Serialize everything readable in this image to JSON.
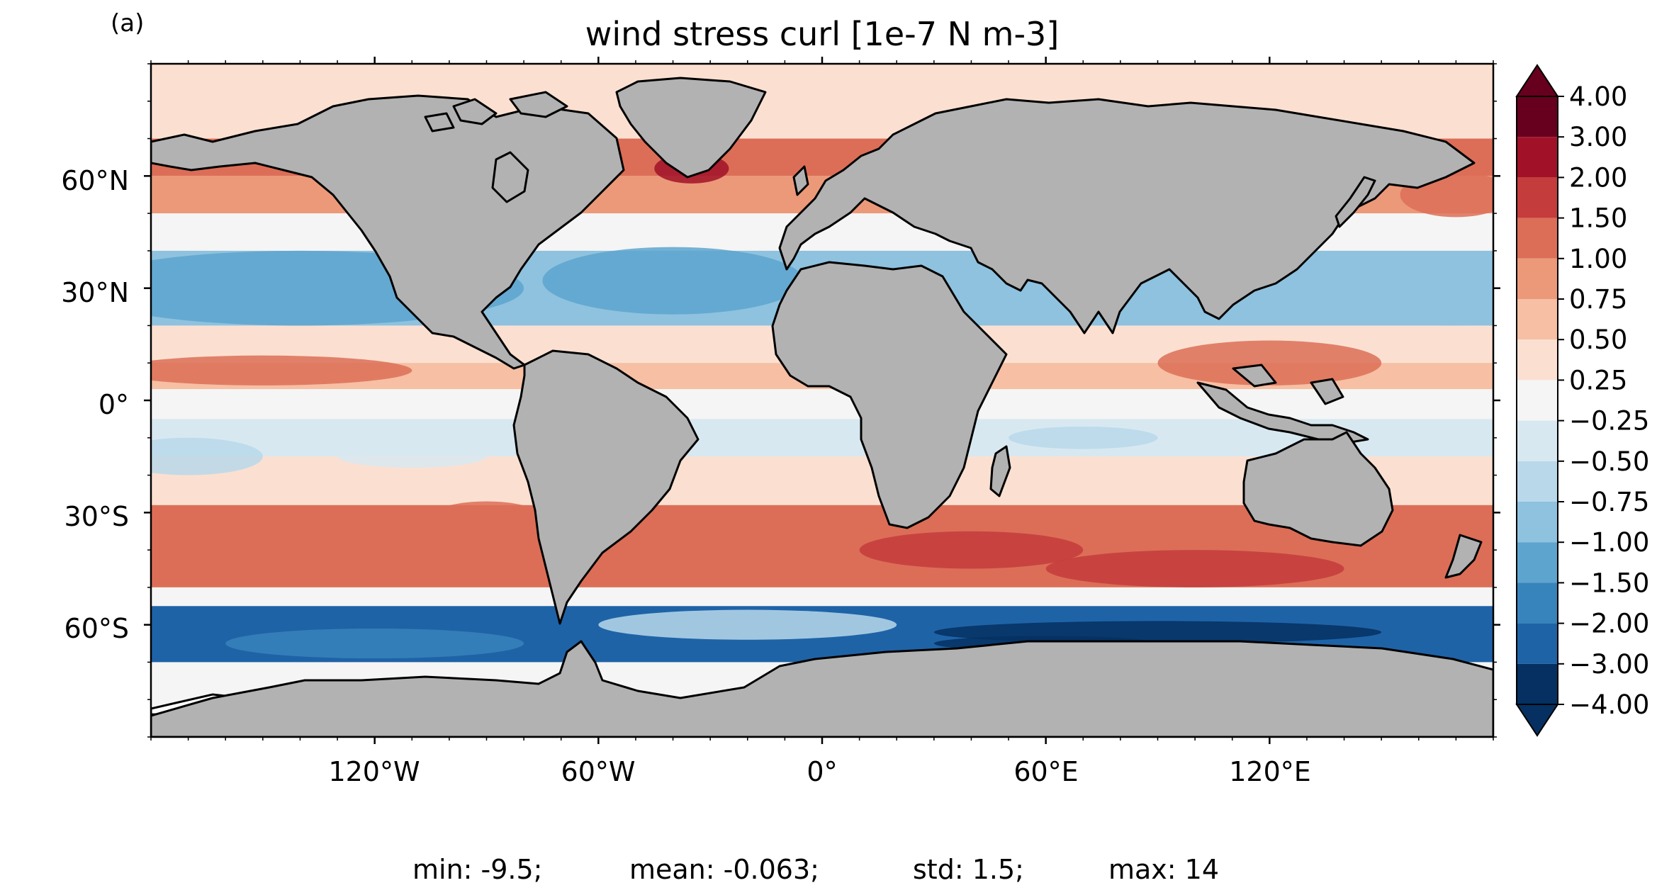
{
  "panel_label": "(a)",
  "title": "wind stress curl [1e-7 N m-3]",
  "lon_ticks": [
    "120°W",
    "60°W",
    "0°",
    "60°E",
    "120°E"
  ],
  "lat_ticks": [
    "60°N",
    "30°N",
    "0°",
    "30°S",
    "60°S"
  ],
  "colorbar": {
    "levels": [
      "4.00",
      "3.00",
      "2.00",
      "1.50",
      "1.00",
      "0.75",
      "0.50",
      "0.25",
      "−0.25",
      "−0.50",
      "−0.75",
      "−1.00",
      "−1.50",
      "−2.00",
      "−3.00",
      "−4.00"
    ],
    "colors": [
      "#67001f",
      "#a11228",
      "#c43c3c",
      "#dc6e57",
      "#ec9979",
      "#f7bfa3",
      "#fbe0d1",
      "#f5f5f5",
      "#d8e8f1",
      "#b9d8ea",
      "#8ec2de",
      "#5da4cf",
      "#3783bb",
      "#1f63a7",
      "#053061"
    ],
    "extend": "both"
  },
  "stats": {
    "min": "min: -9.5;",
    "mean": "mean: -0.063;",
    "std": "std: 1.5;",
    "max": "max: 14"
  },
  "colors": {
    "land": "#b2b2b2",
    "ice": "#ffffff",
    "coast": "#000000"
  },
  "chart_data": {
    "type": "heatmap",
    "title": "wind stress curl [1e-7 N m-3]",
    "projection": "PlateCarree",
    "xlim": [
      -180,
      180
    ],
    "ylim": [
      -90,
      90
    ],
    "xticks": [
      -120,
      -60,
      0,
      60,
      120
    ],
    "yticks": [
      60,
      30,
      0,
      -30,
      -60
    ],
    "colorbar_levels": [
      -4.0,
      -3.0,
      -2.0,
      -1.5,
      -1.0,
      -0.75,
      -0.5,
      -0.25,
      0.25,
      0.5,
      0.75,
      1.0,
      1.5,
      2.0,
      3.0,
      4.0
    ],
    "summary": {
      "min": -9.5,
      "mean": -0.063,
      "std": 1.5,
      "max": 14
    },
    "zonal_bands": [
      {
        "lat": [
          70,
          90
        ],
        "value": 0.3
      },
      {
        "lat": [
          60,
          70
        ],
        "value": 1.2
      },
      {
        "lat": [
          50,
          60
        ],
        "value": 0.8
      },
      {
        "lat": [
          40,
          50
        ],
        "value": -0.2
      },
      {
        "lat": [
          20,
          40
        ],
        "value": -0.8
      },
      {
        "lat": [
          10,
          20
        ],
        "value": 0.4
      },
      {
        "lat": [
          3,
          10
        ],
        "value": 0.7
      },
      {
        "lat": [
          -5,
          3
        ],
        "value": 0.0
      },
      {
        "lat": [
          -15,
          -5
        ],
        "value": -0.4
      },
      {
        "lat": [
          -28,
          -15
        ],
        "value": 0.4
      },
      {
        "lat": [
          -50,
          -28
        ],
        "value": 1.2
      },
      {
        "lat": [
          -55,
          -50
        ],
        "value": 0.2
      },
      {
        "lat": [
          -70,
          -55
        ],
        "value": -2.2
      },
      {
        "lat": [
          -90,
          -70
        ],
        "value": 0.2
      }
    ]
  }
}
